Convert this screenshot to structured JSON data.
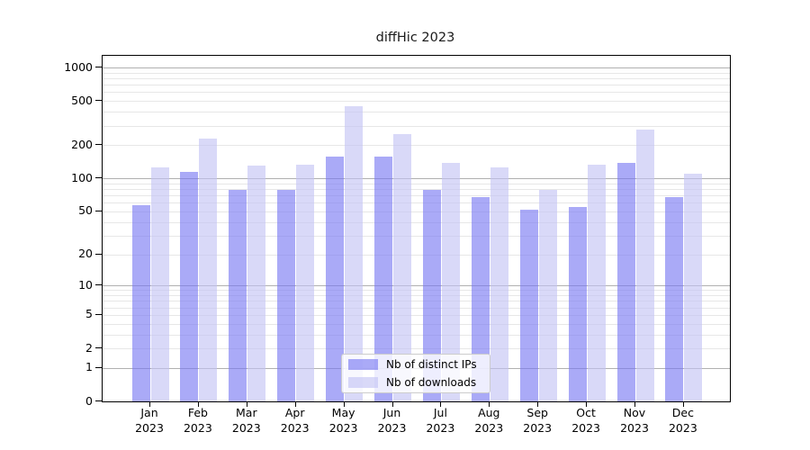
{
  "chart_data": {
    "type": "bar",
    "title": "diffHic 2023",
    "categories": [
      "Jan",
      "Feb",
      "Mar",
      "Apr",
      "May",
      "Jun",
      "Jul",
      "Aug",
      "Sep",
      "Oct",
      "Nov",
      "Dec"
    ],
    "year_label": "2023",
    "series": [
      {
        "name": "Nb of distinct IPs",
        "color": "rgba(118,118,242,0.62)",
        "color_displayed": "#aaaaf7",
        "values": [
          57,
          115,
          79,
          78,
          159,
          157,
          79,
          67,
          52,
          55,
          138,
          67
        ]
      },
      {
        "name": "Nb of downloads",
        "color": "rgba(194,194,244,0.62)",
        "color_displayed": "#d9d9f8",
        "values": [
          125,
          228,
          130,
          134,
          451,
          250,
          138,
          126,
          78,
          132,
          278,
          111
        ]
      }
    ],
    "y_ticks": [
      0,
      1,
      2,
      5,
      10,
      20,
      50,
      100,
      200,
      500,
      1000
    ],
    "y_scale": "log10(value+1) with 0 at baseline",
    "ylim": [
      0,
      1070
    ],
    "grid": {
      "major_lines": [
        1,
        10,
        100,
        1000
      ],
      "minor_lines_rule": "2..9 times 1, 10, 100",
      "major_color": "#b0b0b0",
      "minor_color": "#e7e7e7",
      "grid_on": true
    },
    "legend_position": "lower center inside plot",
    "axis_color": "#000000",
    "background_color": "#ffffff"
  }
}
